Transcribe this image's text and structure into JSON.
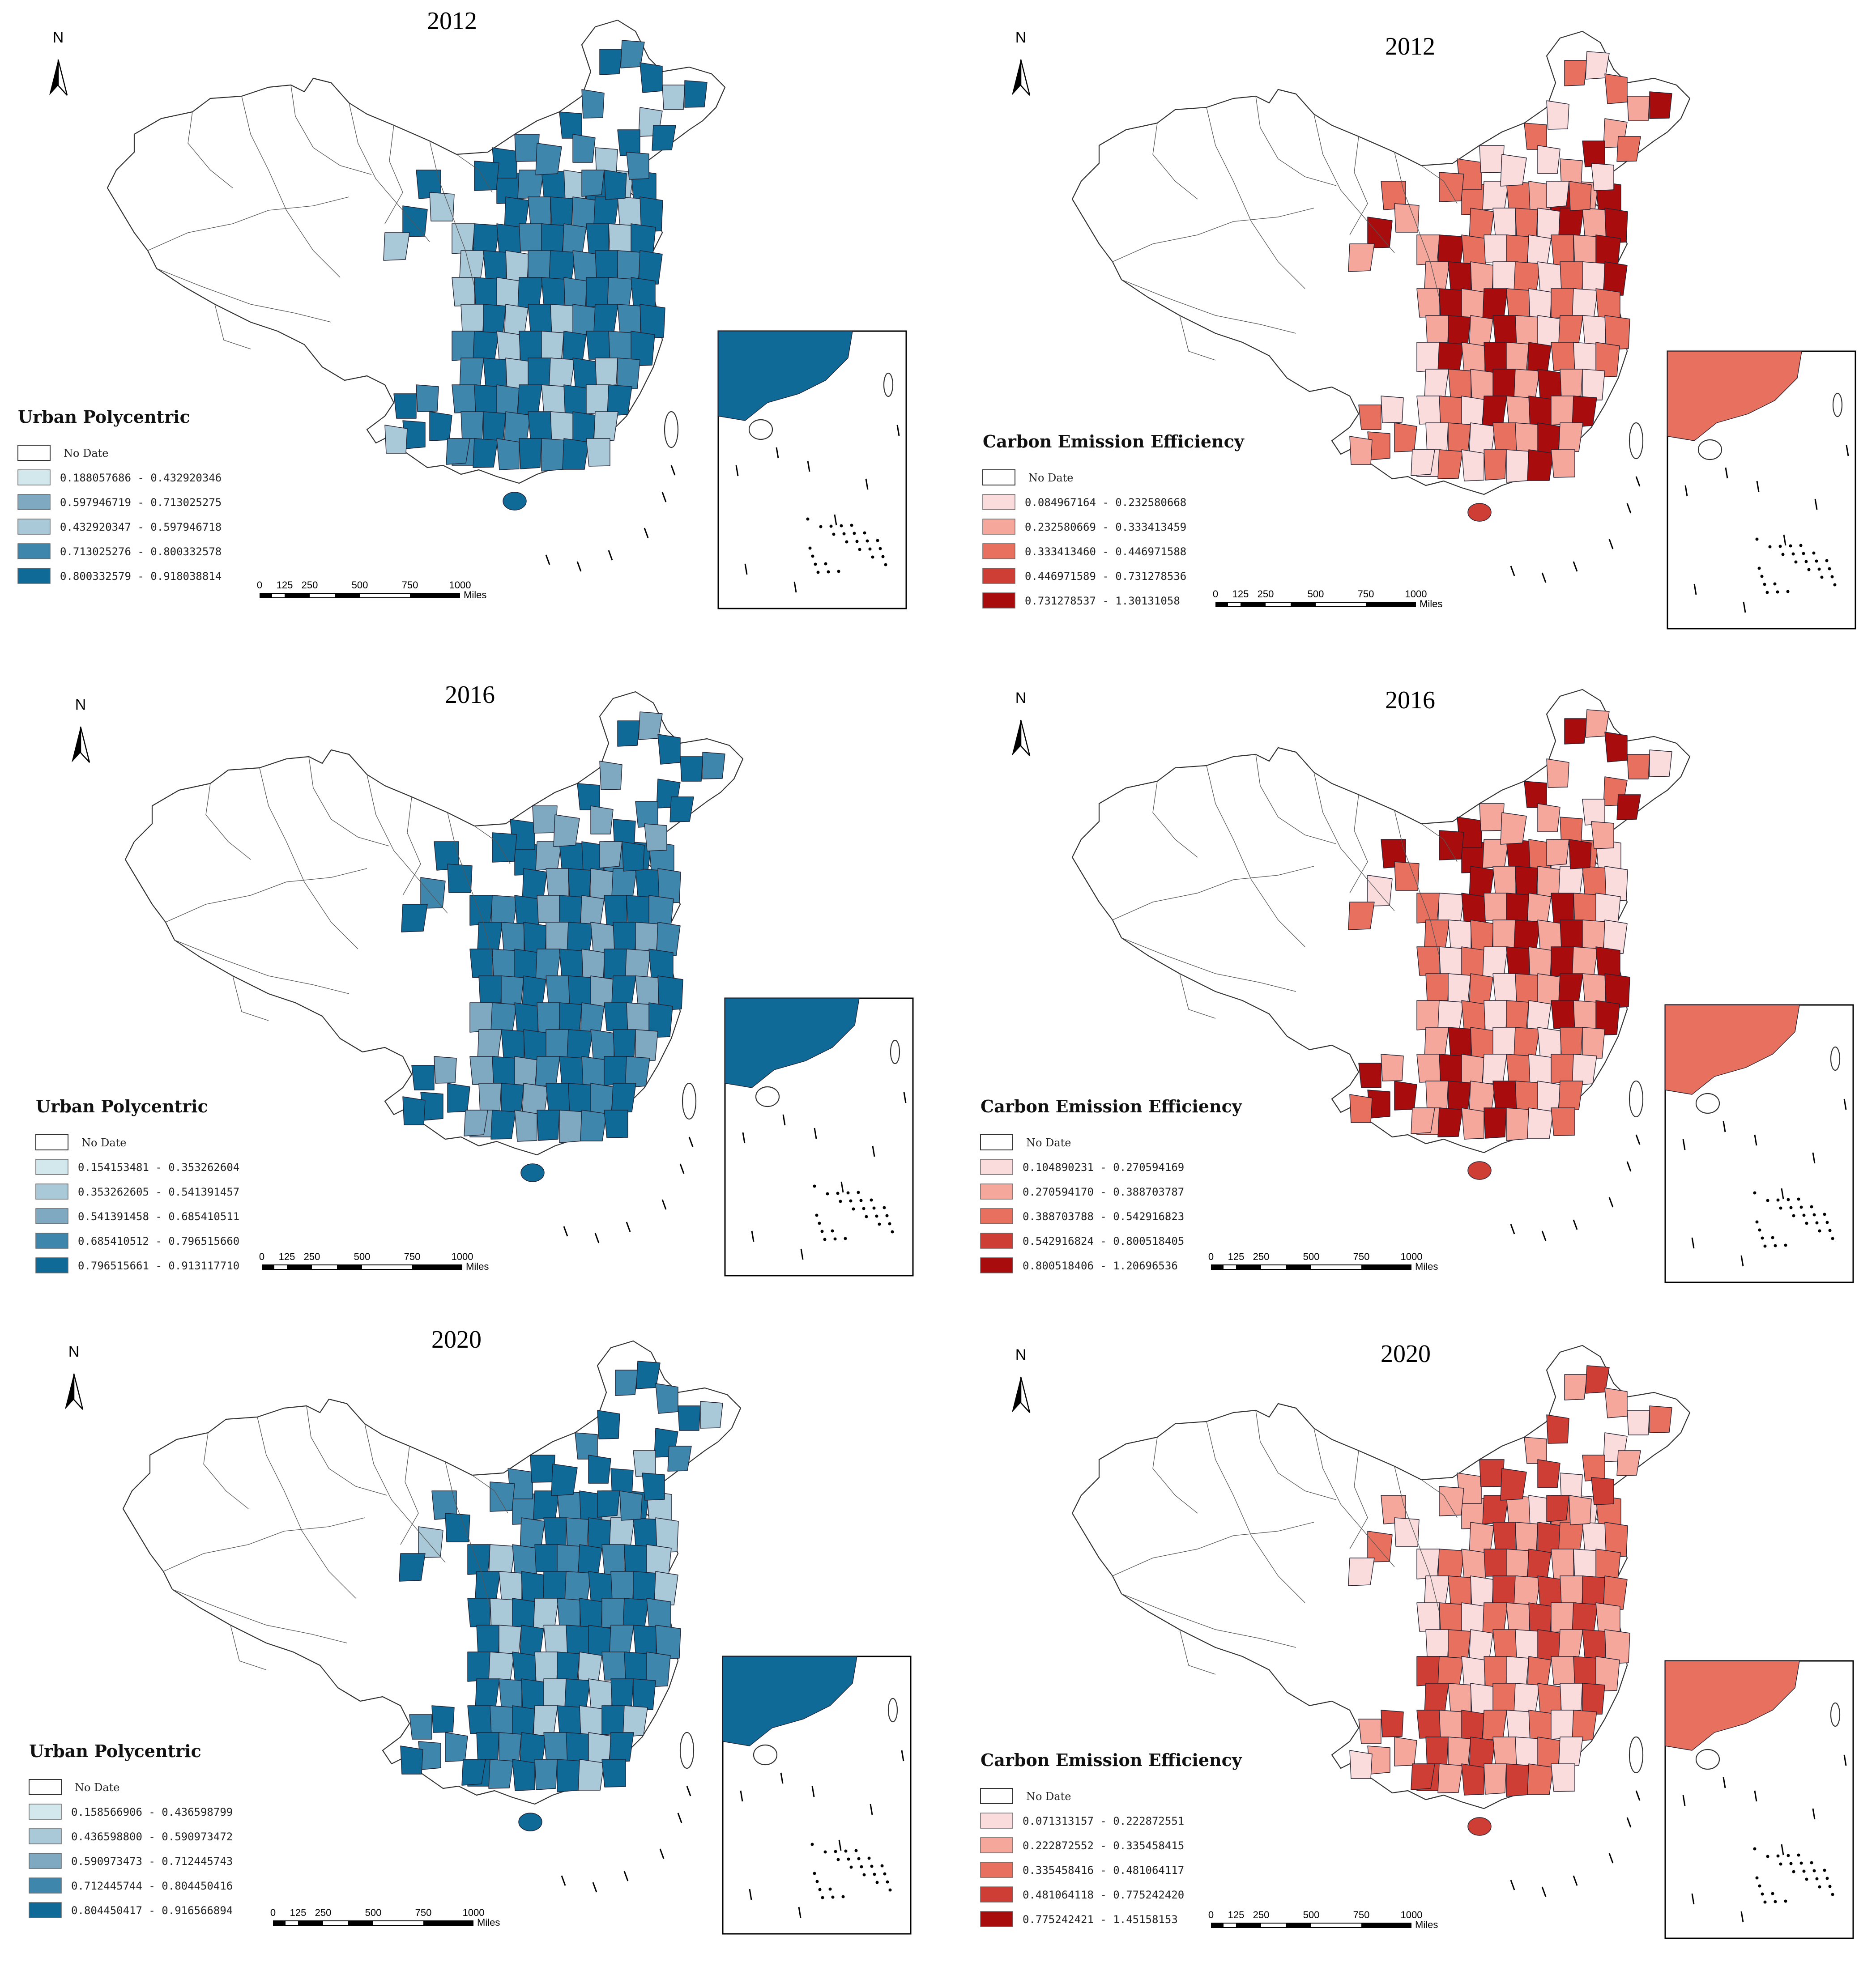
{
  "figure": {
    "scale_bar": {
      "ticks": [
        "0",
        "125",
        "250",
        "500",
        "750",
        "1000"
      ],
      "unit": "Miles"
    },
    "north_arrow_label": "N",
    "no_data_label": "No Date"
  },
  "panels": [
    {
      "key": "up2012",
      "variable": "Urban Polycentric",
      "year": "2012",
      "palette": "blue",
      "legend_title": "Urban Polycentric",
      "classes": [
        {
          "label": "0.188057686  -  0.432920346",
          "color": "#d3e8ec"
        },
        {
          "label": "0.597946719  -  0.713025275",
          "color": "#7fa9c1"
        },
        {
          "label": "0.432920347  -  0.597946718",
          "color": "#a9c8d8"
        },
        {
          "label": "0.713025276  -  0.800332578",
          "color": "#3f86ad"
        },
        {
          "label": "0.800332579  -  0.918038814",
          "color": "#0f6a98"
        }
      ]
    },
    {
      "key": "ce2012",
      "variable": "Carbon Emission Efficiency",
      "year": "2012",
      "palette": "red",
      "legend_title": "Carbon Emission Efficiency",
      "classes": [
        {
          "label": "0.084967164  -  0.232580668",
          "color": "#fbdcdc"
        },
        {
          "label": "0.232580669  -  0.333413459",
          "color": "#f5a79c"
        },
        {
          "label": "0.333413460  -  0.446971588",
          "color": "#e8705f"
        },
        {
          "label": "0.446971589  -  0.731278536",
          "color": "#cf3e34"
        },
        {
          "label": "0.731278537  -  1.30131058",
          "color": "#a80c0c"
        }
      ]
    },
    {
      "key": "up2016",
      "variable": "Urban Polycentric",
      "year": "2016",
      "palette": "blue",
      "legend_title": "Urban Polycentric",
      "classes": [
        {
          "label": "0.154153481  -  0.353262604",
          "color": "#d3e8ec"
        },
        {
          "label": "0.353262605  -  0.541391457",
          "color": "#a9c8d8"
        },
        {
          "label": "0.541391458  -  0.685410511",
          "color": "#7fa9c1"
        },
        {
          "label": "0.685410512  -  0.796515660",
          "color": "#3f86ad"
        },
        {
          "label": "0.796515661  -  0.913117710",
          "color": "#0f6a98"
        }
      ]
    },
    {
      "key": "ce2016",
      "variable": "Carbon Emission Efficiency",
      "year": "2016",
      "palette": "red",
      "legend_title": "Carbon Emission Efficiency",
      "classes": [
        {
          "label": "0.104890231 - 0.270594169",
          "color": "#fbdcdc"
        },
        {
          "label": "0.270594170 - 0.388703787",
          "color": "#f5a79c"
        },
        {
          "label": "0.388703788 - 0.542916823",
          "color": "#e8705f"
        },
        {
          "label": "0.542916824 - 0.800518405",
          "color": "#cf3e34"
        },
        {
          "label": "0.800518406 - 1.20696536",
          "color": "#a80c0c"
        }
      ]
    },
    {
      "key": "up2020",
      "variable": "Urban Polycentric",
      "year": "2020",
      "palette": "blue",
      "legend_title": "Urban Polycentric",
      "classes": [
        {
          "label": "0.158566906  -  0.436598799",
          "color": "#d3e8ec"
        },
        {
          "label": "0.436598800  -  0.590973472",
          "color": "#a9c8d8"
        },
        {
          "label": "0.590973473  -  0.712445743",
          "color": "#7fa9c1"
        },
        {
          "label": "0.712445744  -  0.804450416",
          "color": "#3f86ad"
        },
        {
          "label": "0.804450417  -  0.916566894",
          "color": "#0f6a98"
        }
      ]
    },
    {
      "key": "ce2020",
      "variable": "Carbon Emission Efficiency",
      "year": "2020",
      "palette": "red",
      "legend_title": "Carbon Emission Efficiency",
      "classes": [
        {
          "label": "0.071313157 - 0.222872551",
          "color": "#fbdcdc"
        },
        {
          "label": "0.222872552 - 0.335458415",
          "color": "#f5a79c"
        },
        {
          "label": "0.335458416 - 0.481064117",
          "color": "#e8705f"
        },
        {
          "label": "0.481064118 - 0.775242420",
          "color": "#cf3e34"
        },
        {
          "label": "0.775242421 - 1.45158153",
          "color": "#a80c0c"
        }
      ]
    }
  ]
}
